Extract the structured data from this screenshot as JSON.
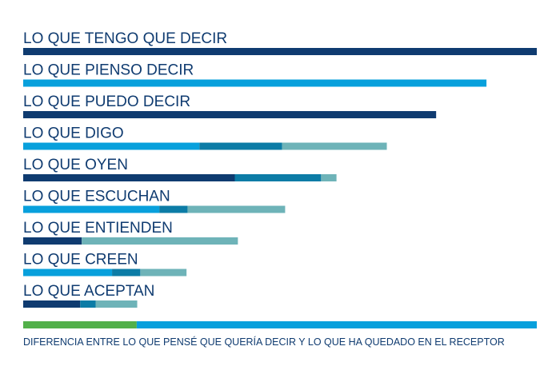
{
  "chart_data": {
    "type": "bar",
    "orientation": "horizontal",
    "stacked": true,
    "axis": "hidden",
    "xlim": [
      0,
      100
    ],
    "grid": false,
    "legend": "none",
    "colors": {
      "dark_navy": "#0f3b70",
      "bright_blue": "#08a0dc",
      "mid_teal": "#0c7ca6",
      "light_teal": "#6eb3b8",
      "green": "#52b04a"
    },
    "rows": [
      {
        "label": "LO QUE TENGO QUE DECIR",
        "segments": [
          {
            "value": 100,
            "color": "#0f3b70"
          }
        ]
      },
      {
        "label": "LO QUE PIENSO DECIR",
        "segments": [
          {
            "value": 90.2,
            "color": "#08a0dc"
          }
        ]
      },
      {
        "label": "LO QUE PUEDO DECIR",
        "segments": [
          {
            "value": 80.4,
            "color": "#0f3b70"
          }
        ]
      },
      {
        "label": "LO QUE DIGO",
        "segments": [
          {
            "value": 34.3,
            "color": "#08a0dc"
          },
          {
            "value": 16.1,
            "color": "#0c7ca6"
          },
          {
            "value": 20.4,
            "color": "#6eb3b8"
          }
        ]
      },
      {
        "label": "LO QUE OYEN",
        "segments": [
          {
            "value": 41.2,
            "color": "#0f3b70"
          },
          {
            "value": 16.8,
            "color": "#0c7ca6"
          },
          {
            "value": 3.0,
            "color": "#6eb3b8"
          }
        ]
      },
      {
        "label": "LO QUE ESCUCHAN",
        "segments": [
          {
            "value": 26.5,
            "color": "#08a0dc"
          },
          {
            "value": 5.5,
            "color": "#0c7ca6"
          },
          {
            "value": 19.0,
            "color": "#6eb3b8"
          }
        ]
      },
      {
        "label": "LO QUE ENTIENDEN",
        "segments": [
          {
            "value": 11.4,
            "color": "#0f3b70"
          },
          {
            "value": 30.4,
            "color": "#6eb3b8"
          }
        ]
      },
      {
        "label": "LO QUE CREEN",
        "segments": [
          {
            "value": 17.3,
            "color": "#08a0dc"
          },
          {
            "value": 5.5,
            "color": "#0c7ca6"
          },
          {
            "value": 9.0,
            "color": "#6eb3b8"
          }
        ]
      },
      {
        "label": "LO QUE ACEPTAN",
        "segments": [
          {
            "value": 11.1,
            "color": "#0f3b70"
          },
          {
            "value": 3.0,
            "color": "#0c7ca6"
          },
          {
            "value": 8.1,
            "color": "#6eb3b8"
          }
        ]
      }
    ],
    "summary_bar": {
      "segments": [
        {
          "value": 22.1,
          "color": "#52b04a"
        },
        {
          "value": 77.9,
          "color": "#08a0dc"
        }
      ],
      "label": "DIFERENCIA ENTRE LO QUE PENSÉ QUE QUERÍA DECIR Y LO QUE HA QUEDADO EN EL RECEPTOR"
    }
  }
}
